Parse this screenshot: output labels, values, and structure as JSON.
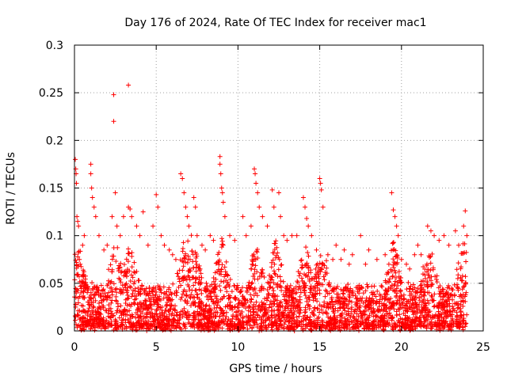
{
  "chart_data": {
    "type": "scatter",
    "title": "Day 176 of 2024, Rate Of TEC Index for receiver mac1",
    "xlabel": "GPS time / hours",
    "ylabel": "ROTI / TECUs",
    "xlim": [
      0,
      25
    ],
    "ylim": [
      0,
      0.3
    ],
    "x_ticks": [
      0,
      5,
      10,
      15,
      20,
      25
    ],
    "y_ticks": [
      0,
      0.05,
      0.1,
      0.15,
      0.2,
      0.25,
      0.3
    ],
    "x_tick_labels": [
      "0",
      "5",
      "10",
      "15",
      "20",
      "25"
    ],
    "y_tick_labels": [
      "0",
      "0.05",
      "0.1",
      "0.15",
      "0.2",
      "0.25",
      "0.3"
    ],
    "grid": true,
    "marker": "+",
    "colors": {
      "points": "#ff0000",
      "grid": "#a0a0a0",
      "axes": "#000000"
    },
    "series": [
      {
        "name": "ROTI",
        "points": [
          [
            0.05,
            0.18
          ],
          [
            0.08,
            0.17
          ],
          [
            0.1,
            0.165
          ],
          [
            0.12,
            0.155
          ],
          [
            0.15,
            0.12
          ],
          [
            0.2,
            0.115
          ],
          [
            0.25,
            0.11
          ],
          [
            0.3,
            0.075
          ],
          [
            0.35,
            0.07
          ],
          [
            0.5,
            0.09
          ],
          [
            0.6,
            0.1
          ],
          [
            1.0,
            0.175
          ],
          [
            1.0,
            0.165
          ],
          [
            1.05,
            0.15
          ],
          [
            1.1,
            0.14
          ],
          [
            1.2,
            0.13
          ],
          [
            1.3,
            0.12
          ],
          [
            1.5,
            0.1
          ],
          [
            1.8,
            0.085
          ],
          [
            2.0,
            0.09
          ],
          [
            2.4,
            0.248
          ],
          [
            2.4,
            0.22
          ],
          [
            2.5,
            0.145
          ],
          [
            2.3,
            0.12
          ],
          [
            2.6,
            0.11
          ],
          [
            2.8,
            0.1
          ],
          [
            3.0,
            0.12
          ],
          [
            3.3,
            0.258
          ],
          [
            3.3,
            0.13
          ],
          [
            3.4,
            0.128
          ],
          [
            3.5,
            0.12
          ],
          [
            3.8,
            0.11
          ],
          [
            4.0,
            0.1
          ],
          [
            4.2,
            0.125
          ],
          [
            4.5,
            0.09
          ],
          [
            4.8,
            0.11
          ],
          [
            5.0,
            0.143
          ],
          [
            5.1,
            0.13
          ],
          [
            5.3,
            0.1
          ],
          [
            5.5,
            0.09
          ],
          [
            5.8,
            0.085
          ],
          [
            6.0,
            0.08
          ],
          [
            6.2,
            0.075
          ],
          [
            6.5,
            0.165
          ],
          [
            6.6,
            0.16
          ],
          [
            6.7,
            0.145
          ],
          [
            6.8,
            0.13
          ],
          [
            6.9,
            0.12
          ],
          [
            7.0,
            0.11
          ],
          [
            7.3,
            0.14
          ],
          [
            7.4,
            0.13
          ],
          [
            7.5,
            0.1
          ],
          [
            7.8,
            0.09
          ],
          [
            8.0,
            0.085
          ],
          [
            8.3,
            0.1
          ],
          [
            8.5,
            0.095
          ],
          [
            8.9,
            0.183
          ],
          [
            8.9,
            0.175
          ],
          [
            8.95,
            0.165
          ],
          [
            9.0,
            0.15
          ],
          [
            9.05,
            0.145
          ],
          [
            9.1,
            0.135
          ],
          [
            9.2,
            0.12
          ],
          [
            9.5,
            0.1
          ],
          [
            9.8,
            0.095
          ],
          [
            10.3,
            0.12
          ],
          [
            10.5,
            0.1
          ],
          [
            10.8,
            0.11
          ],
          [
            11.0,
            0.17
          ],
          [
            11.05,
            0.165
          ],
          [
            11.1,
            0.155
          ],
          [
            11.2,
            0.145
          ],
          [
            11.3,
            0.13
          ],
          [
            11.5,
            0.12
          ],
          [
            11.8,
            0.11
          ],
          [
            12.1,
            0.148
          ],
          [
            12.2,
            0.13
          ],
          [
            12.5,
            0.145
          ],
          [
            12.6,
            0.12
          ],
          [
            12.8,
            0.1
          ],
          [
            13.0,
            0.095
          ],
          [
            13.3,
            0.1
          ],
          [
            13.6,
            0.1
          ],
          [
            14.0,
            0.14
          ],
          [
            14.1,
            0.13
          ],
          [
            14.2,
            0.118
          ],
          [
            14.3,
            0.11
          ],
          [
            14.5,
            0.1
          ],
          [
            14.8,
            0.085
          ],
          [
            15.0,
            0.16
          ],
          [
            15.05,
            0.155
          ],
          [
            15.1,
            0.148
          ],
          [
            15.2,
            0.13
          ],
          [
            15.5,
            0.08
          ],
          [
            15.8,
            0.075
          ],
          [
            16.0,
            0.09
          ],
          [
            16.3,
            0.075
          ],
          [
            16.5,
            0.085
          ],
          [
            16.8,
            0.07
          ],
          [
            17.0,
            0.08
          ],
          [
            17.5,
            0.1
          ],
          [
            17.8,
            0.07
          ],
          [
            18.0,
            0.085
          ],
          [
            18.5,
            0.075
          ],
          [
            19.0,
            0.08
          ],
          [
            19.4,
            0.145
          ],
          [
            19.5,
            0.127
          ],
          [
            19.6,
            0.12
          ],
          [
            19.7,
            0.11
          ],
          [
            19.8,
            0.1
          ],
          [
            20.0,
            0.075
          ],
          [
            20.3,
            0.07
          ],
          [
            20.5,
            0.065
          ],
          [
            20.8,
            0.08
          ],
          [
            21.0,
            0.09
          ],
          [
            21.2,
            0.08
          ],
          [
            21.6,
            0.11
          ],
          [
            21.8,
            0.105
          ],
          [
            22.0,
            0.1
          ],
          [
            22.3,
            0.095
          ],
          [
            22.6,
            0.1
          ],
          [
            22.9,
            0.09
          ],
          [
            23.3,
            0.105
          ],
          [
            23.5,
            0.09
          ],
          [
            23.8,
            0.11
          ],
          [
            23.9,
            0.126
          ],
          [
            24.0,
            0.1
          ]
        ]
      }
    ]
  }
}
